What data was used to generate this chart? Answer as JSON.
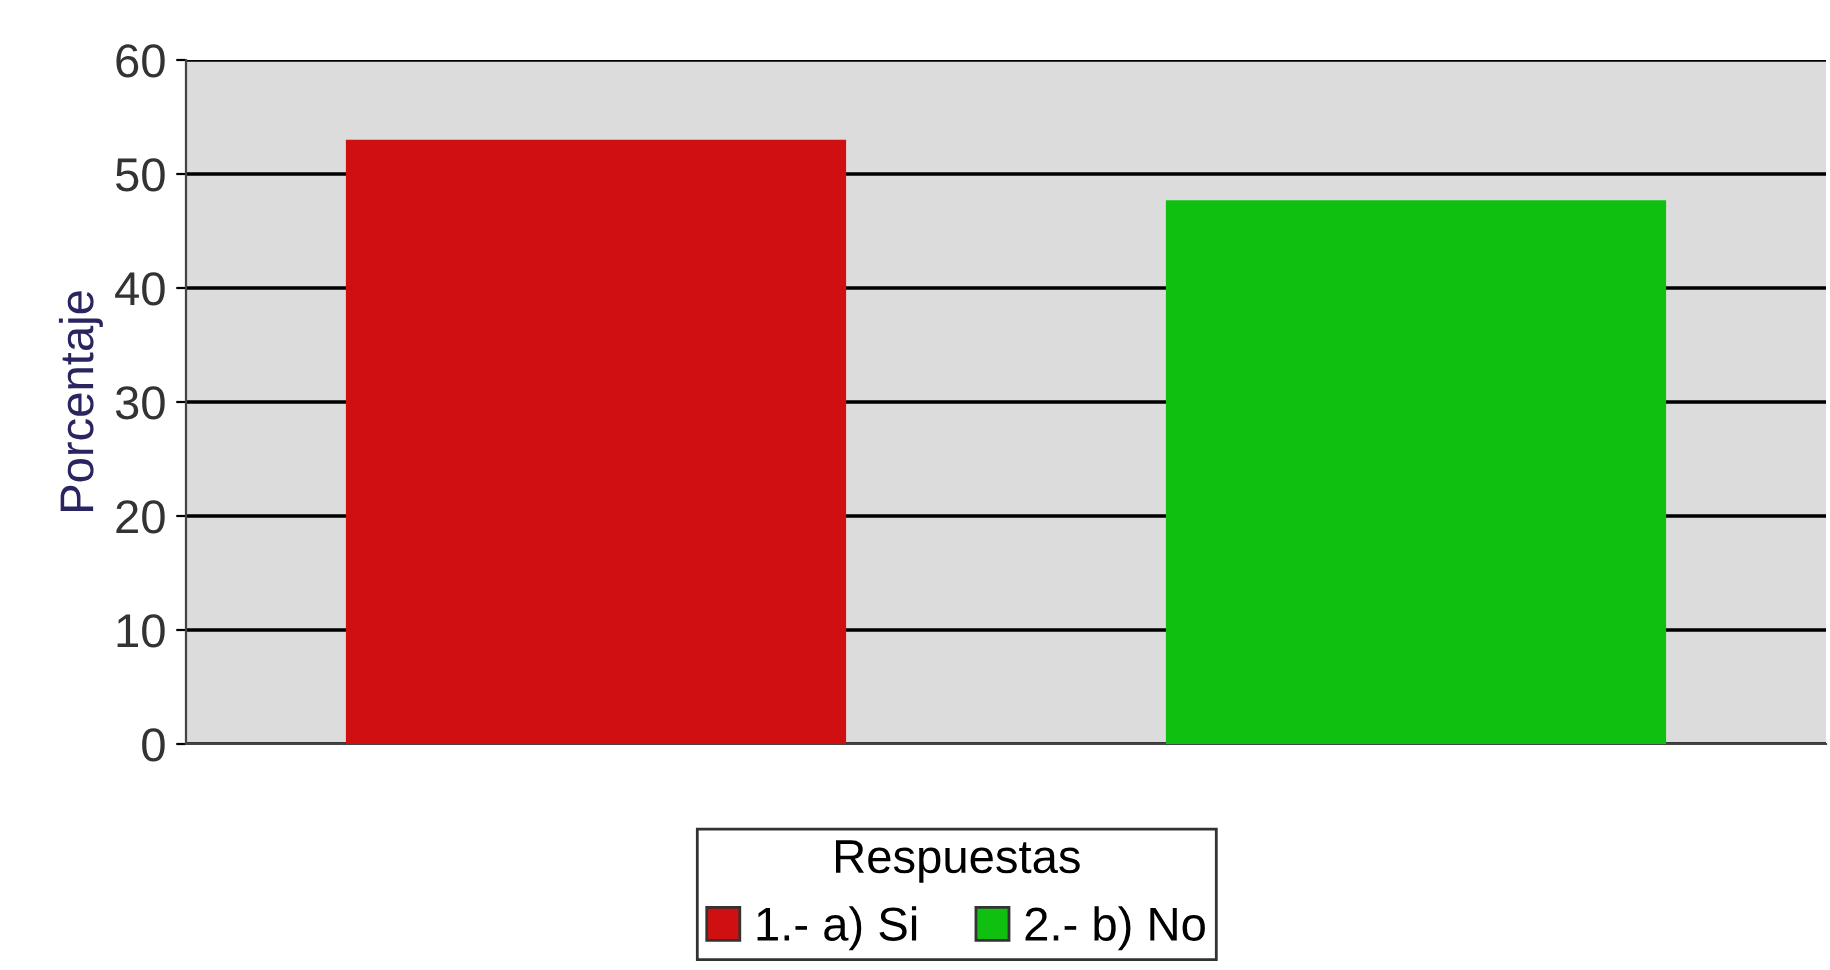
{
  "chart_data": {
    "type": "bar",
    "ylabel": "Porcentaje",
    "legend_title": "Respuestas",
    "categories": [
      null,
      null
    ],
    "series": [
      {
        "name": "1.- a) Si",
        "color": "#d01010",
        "values": [
          53,
          null
        ]
      },
      {
        "name": "2.- b) No",
        "color": "#10c010",
        "values": [
          null,
          47.7
        ]
      }
    ],
    "ylim": [
      0,
      60
    ],
    "yticks": [
      0,
      10,
      20,
      30,
      40,
      50,
      60
    ],
    "grid": "y",
    "legend": "bottom"
  }
}
